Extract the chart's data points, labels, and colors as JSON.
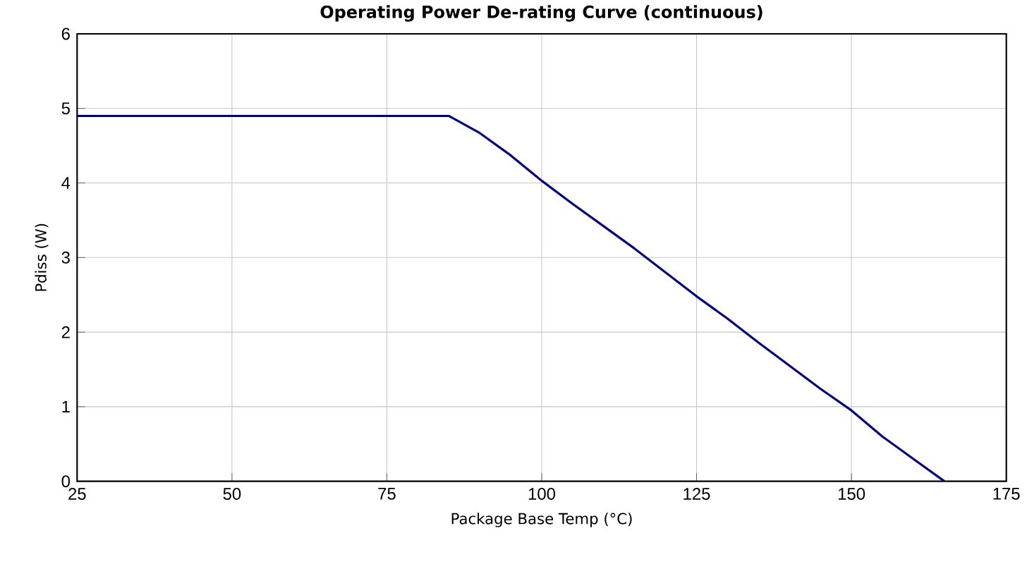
{
  "chart_data": {
    "type": "line",
    "title": "Operating Power De-rating Curve (continuous)",
    "xlabel": "Package Base Temp (°C)",
    "ylabel": "Pdiss (W)",
    "series": [
      {
        "color": "#000080",
        "x": [
          25,
          85,
          90,
          95,
          100,
          105,
          110,
          115,
          120,
          125,
          130,
          135,
          140,
          145,
          150,
          155,
          160,
          165
        ],
        "values": [
          4.9,
          4.9,
          4.67,
          4.37,
          4.03,
          3.72,
          3.42,
          3.12,
          2.8,
          2.48,
          2.18,
          1.86,
          1.55,
          1.24,
          0.95,
          0.6,
          0.3,
          0
        ]
      }
    ],
    "xlim": [
      25,
      175
    ],
    "ylim": [
      0,
      6
    ],
    "xticks": [
      25,
      50,
      75,
      100,
      125,
      150,
      175
    ],
    "yticks": [
      0,
      1,
      2,
      3,
      4,
      5,
      6
    ],
    "grid": true,
    "marker": "none",
    "line_style": "solid"
  }
}
